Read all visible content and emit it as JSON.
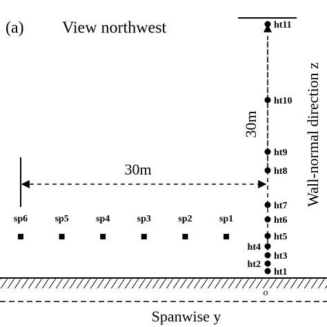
{
  "panel_label": "(a)",
  "view": "View northwest",
  "heights": [
    "ht1",
    "ht2",
    "ht3",
    "ht4",
    "ht5",
    "ht6",
    "ht7",
    "ht8",
    "ht9",
    "ht10",
    "ht11"
  ],
  "spanwise": [
    "sp1",
    "sp2",
    "sp3",
    "sp4",
    "sp5",
    "sp6"
  ],
  "vertical_distance": "30m",
  "horizontal_distance": "30m",
  "z_axis": "Wall-normal direction z",
  "y_axis": "Spanwise y",
  "origin": "o"
}
